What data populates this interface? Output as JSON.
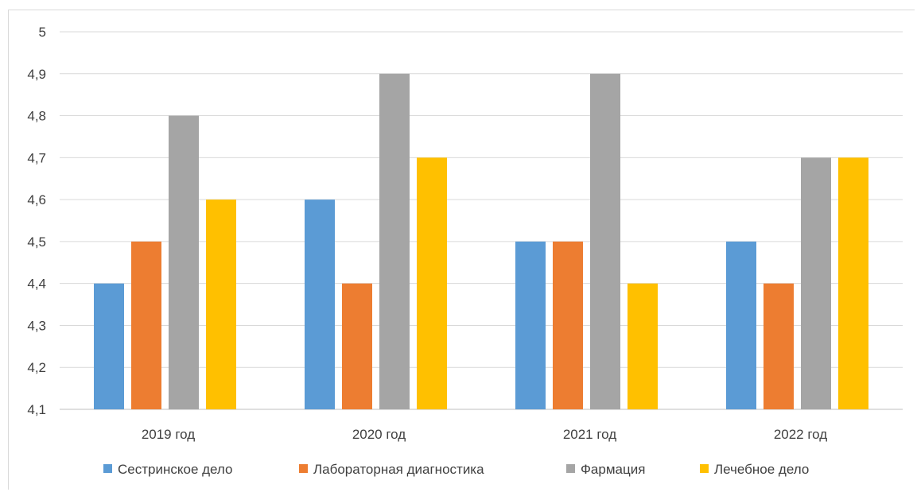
{
  "chart_data": {
    "type": "bar",
    "title": "",
    "xlabel": "",
    "ylabel": "",
    "categories": [
      "2019 год",
      "2020 год",
      "2021 год",
      "2022 год"
    ],
    "ylim": [
      4.1,
      5
    ],
    "y_ticks": [
      "4,1",
      "4,2",
      "4,3",
      "4,4",
      "4,5",
      "4,6",
      "4,7",
      "4,8",
      "4,9",
      "5"
    ],
    "grid": true,
    "legend_position": "bottom",
    "series": [
      {
        "name": "Сестринское дело",
        "color": "#5b9bd5",
        "values": [
          4.4,
          4.6,
          4.5,
          4.5
        ]
      },
      {
        "name": "Лабораторная диагностика",
        "color": "#ed7d31",
        "values": [
          4.5,
          4.4,
          4.5,
          4.4
        ]
      },
      {
        "name": "Фармация",
        "color": "#a5a5a5",
        "values": [
          4.8,
          4.9,
          4.9,
          4.7
        ]
      },
      {
        "name": "Лечебное дело",
        "color": "#ffc000",
        "values": [
          4.6,
          4.7,
          4.4,
          4.7
        ]
      }
    ]
  }
}
